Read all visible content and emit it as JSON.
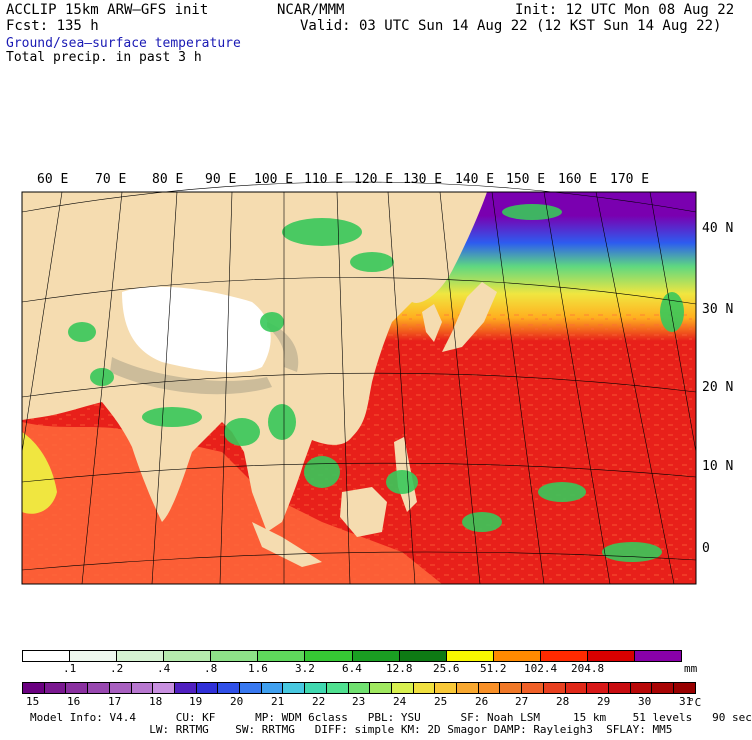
{
  "header": {
    "model": "ACCLIP 15km ARW–GFS init",
    "forecast": "Fcst:  135 h",
    "center": "NCAR/MMM",
    "init": "Init: 12 UTC Mon 08 Aug 22",
    "valid": "Valid: 03 UTC Sun 14 Aug 22 (12 KST Sun 14 Aug 22)"
  },
  "fields": {
    "shaded": "Ground/sea–surface temperature",
    "overlay": "Total precip. in past 3 h"
  },
  "map": {
    "lon_labels": [
      "60 E",
      "70 E",
      "80 E",
      "90 E",
      "100 E",
      "110 E",
      "120 E",
      "130 E",
      "140 E",
      "150 E",
      "160 E",
      "170 E"
    ],
    "lat_labels": [
      "40 N",
      "30 N",
      "20 N",
      "10 N",
      "0"
    ],
    "colors": {
      "ocean_warm": "#e8201a",
      "ocean_mid": "#ff6a3c",
      "ocean_cool": "#ffb020",
      "ocean_yellow": "#f0e640",
      "ocean_green": "#5fd880",
      "ocean_blue": "#2d5cf0",
      "ocean_purple": "#7a00b0",
      "land": "#f5dcb0",
      "plateau": "#ffffff",
      "mountain": "#c8b898",
      "precip": "#38c85a"
    }
  },
  "precip_scale": {
    "labels": [
      ".1",
      ".2",
      ".4",
      ".8",
      "1.6",
      "3.2",
      "6.4",
      "12.8",
      "25.6",
      "51.2",
      "102.4",
      "204.8"
    ],
    "unit": "mm",
    "colors": [
      "#ffffff",
      "#eef8ee",
      "#d6f3d2",
      "#b6ebae",
      "#8ee288",
      "#5fd85c",
      "#36c834",
      "#1a9e22",
      "#0e7a14",
      "#f8f800",
      "#ff8a00",
      "#ff2a00",
      "#d80000",
      "#8800a8"
    ]
  },
  "temp_scale": {
    "labels": [
      "15",
      "16",
      "17",
      "18",
      "19",
      "20",
      "21",
      "22",
      "23",
      "24",
      "25",
      "26",
      "27",
      "28",
      "29",
      "30",
      "31"
    ],
    "unit": "°C",
    "colors": [
      "#6a0080",
      "#7a1890",
      "#8a30a0",
      "#9848b0",
      "#a860c0",
      "#b878d0",
      "#c890e0",
      "#5020c0",
      "#3030d8",
      "#3050e8",
      "#3878f0",
      "#40a0f0",
      "#48c8e0",
      "#40d8b0",
      "#50e090",
      "#70e070",
      "#a0e860",
      "#d8f050",
      "#f0e040",
      "#f8c838",
      "#f8a830",
      "#f89028",
      "#f07828",
      "#f06028",
      "#e84020",
      "#e02818",
      "#d81818",
      "#c80c10",
      "#b80808",
      "#a80404",
      "#980000"
    ]
  },
  "footer": {
    "line1": "Model Info: V4.4      CU: KF      MP: WDM 6class   PBL: YSU      SF: Noah LSM     15 km    51 levels   90 sec",
    "line2": "                  LW: RRTMG    SW: RRTMG   DIFF: simple KM: 2D Smagor DAMP: Rayleigh3  SFLAY: MM5"
  }
}
